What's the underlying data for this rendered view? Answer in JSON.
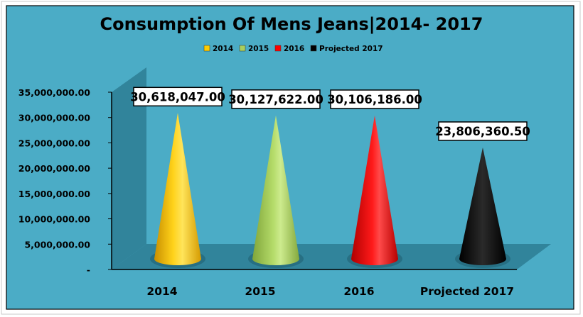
{
  "chart_data": {
    "type": "bar",
    "style": "3d-cone",
    "title": "Consumption Of Mens Jeans|2014- 2017",
    "categories": [
      "2014",
      "2015",
      "2016",
      "Projected 2017"
    ],
    "series": [
      {
        "name": "2014",
        "values": [
          30618047.0,
          null,
          null,
          null
        ],
        "color": "#ffcc00"
      },
      {
        "name": "2015",
        "values": [
          null,
          30127622.0,
          null,
          null
        ],
        "color": "#a9cf5e"
      },
      {
        "name": "2016",
        "values": [
          null,
          null,
          30106186.0,
          null
        ],
        "color": "#ff0000"
      },
      {
        "name": "Projected 2017",
        "values": [
          null,
          null,
          null,
          23806360.5
        ],
        "color": "#000000"
      }
    ],
    "data_labels": [
      "30,618,047.00",
      "30,127,622.00",
      "30,106,186.00",
      "23,806,360.50"
    ],
    "y_ticks": [
      "-",
      "5,000,000.00",
      "10,000,000.00",
      "15,000,000.00",
      "20,000,000.00",
      "25,000,000.00",
      "30,000,000.00",
      "35,000,000.00"
    ],
    "ylim": [
      0,
      35000000
    ],
    "legend_position": "top",
    "grid": false,
    "colors": {
      "background": "#4bacc6",
      "wall": "#31849b",
      "floor": "#31849b"
    }
  }
}
